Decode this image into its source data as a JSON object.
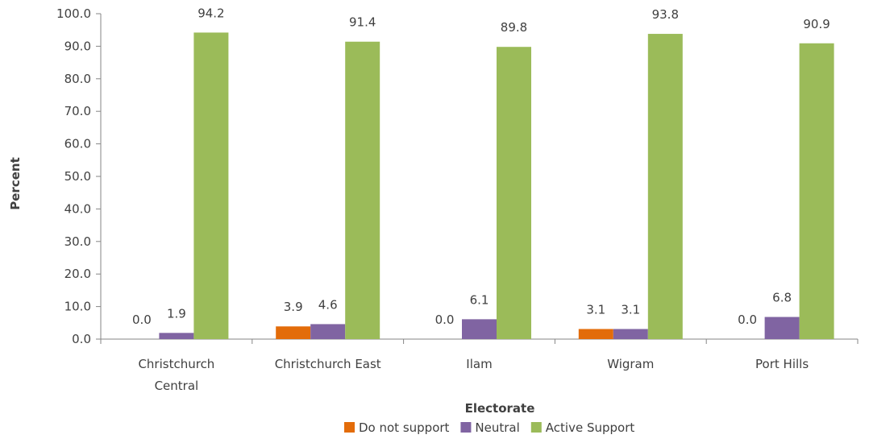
{
  "chart_data": {
    "type": "bar",
    "xlabel": "Electorate",
    "ylabel": "Percent",
    "ylim": [
      0,
      100
    ],
    "ytick_step": 10,
    "tick_decimals": 1,
    "categories": [
      [
        "Christchurch",
        "Central"
      ],
      [
        "Christchurch East"
      ],
      [
        "Ilam"
      ],
      [
        "Wigram"
      ],
      [
        "Port Hills"
      ]
    ],
    "series": [
      {
        "name": "Do not support",
        "color": "#E36C0A",
        "values": [
          0.0,
          3.9,
          0.0,
          3.1,
          0.0
        ]
      },
      {
        "name": "Neutral",
        "color": "#8064A2",
        "values": [
          1.9,
          4.6,
          6.1,
          3.1,
          6.8
        ]
      },
      {
        "name": "Active Support",
        "color": "#9BBB59",
        "values": [
          94.2,
          91.4,
          89.8,
          93.8,
          90.9
        ]
      }
    ],
    "grid": false,
    "legend_position": "bottom",
    "data_labels": true
  }
}
